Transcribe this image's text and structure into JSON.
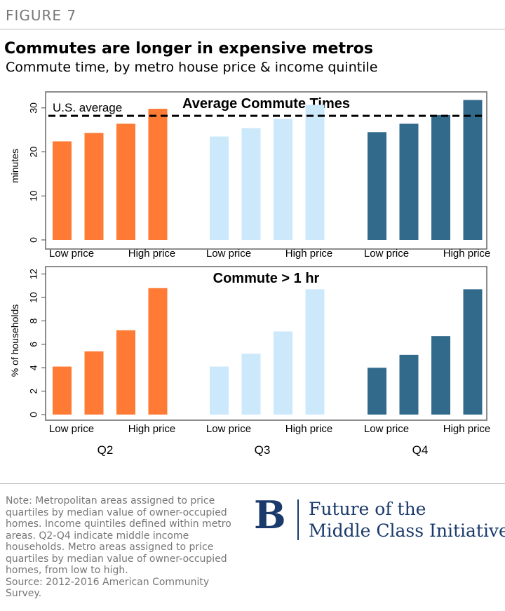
{
  "figure_label": "FIGURE 7",
  "title": "Commutes are longer in expensive metros",
  "subtitle": "Commute time, by metro house price & income quintile",
  "note": "Note: Metropolitan areas assigned to price quartiles by median value of owner-occupied homes. Income quintiles defined within metro areas. Q2-Q4 indicate middle income households. Metro areas assigned to price quartiles by median value of owner-occupied homes, from low to high.",
  "source": "Source: 2012-2016  American Community Survey.",
  "logo": {
    "letter": "B",
    "line1": "Future of the",
    "line2": "Middle Class Initiative"
  },
  "colors": {
    "Q2": "#fe7a35",
    "Q3": "#cce8fb",
    "Q4": "#326a8c"
  },
  "chart_data": [
    {
      "type": "bar",
      "title": "Average Commute Times",
      "ylabel": "minutes",
      "ylim": [
        0,
        33
      ],
      "yticks": [
        0,
        10,
        20,
        30
      ],
      "reference_line": {
        "value": 28.2,
        "label": "U.S. average"
      },
      "groups": [
        "Q2",
        "Q3",
        "Q4"
      ],
      "group_axis_labels": [
        "Low price",
        "High price"
      ],
      "series": [
        {
          "name": "Q2",
          "values": [
            22.4,
            24.3,
            26.4,
            29.8
          ]
        },
        {
          "name": "Q3",
          "values": [
            23.5,
            25.4,
            27.5,
            30.7
          ]
        },
        {
          "name": "Q4",
          "values": [
            24.5,
            26.4,
            28.4,
            31.8
          ]
        }
      ]
    },
    {
      "type": "bar",
      "title": "Commute > 1 hr",
      "ylabel": "% of households",
      "ylim": [
        0,
        12.4
      ],
      "yticks": [
        0,
        2,
        4,
        6,
        8,
        10,
        12
      ],
      "groups": [
        "Q2",
        "Q3",
        "Q4"
      ],
      "group_axis_labels": [
        "Low price",
        "High price"
      ],
      "series": [
        {
          "name": "Q2",
          "values": [
            4.1,
            5.4,
            7.2,
            10.8
          ]
        },
        {
          "name": "Q3",
          "values": [
            4.1,
            5.2,
            7.1,
            10.7
          ]
        },
        {
          "name": "Q4",
          "values": [
            4.0,
            5.1,
            6.7,
            10.7
          ]
        }
      ]
    }
  ]
}
